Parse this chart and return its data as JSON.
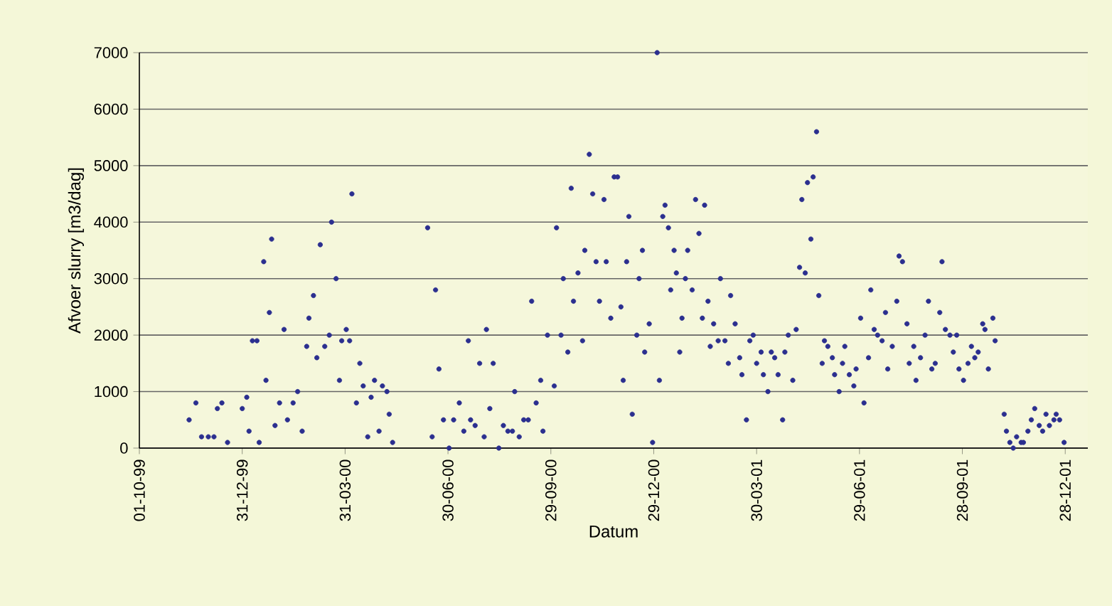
{
  "chart_data": {
    "type": "scatter",
    "xlabel": "Datum",
    "ylabel": "Afvoer slurry [m3/dag]",
    "xlim": [
      "1999-10-01",
      "2002-01-17"
    ],
    "xticks": [
      {
        "value": "1999-10-01",
        "label": "01-10-99"
      },
      {
        "value": "1999-12-31",
        "label": "31-12-99"
      },
      {
        "value": "2000-03-31",
        "label": "31-03-00"
      },
      {
        "value": "2000-06-30",
        "label": "30-06-00"
      },
      {
        "value": "2000-09-29",
        "label": "29-09-00"
      },
      {
        "value": "2000-12-29",
        "label": "29-12-00"
      },
      {
        "value": "2001-03-30",
        "label": "30-03-01"
      },
      {
        "value": "2001-06-29",
        "label": "29-06-01"
      },
      {
        "value": "2001-09-28",
        "label": "28-09-01"
      },
      {
        "value": "2001-12-28",
        "label": "28-12-01"
      }
    ],
    "ylim": [
      0,
      7000
    ],
    "yticks": [
      0,
      1000,
      2000,
      3000,
      4000,
      5000,
      6000,
      7000
    ],
    "grid": "y",
    "series": [
      {
        "color": "#2b2f8f",
        "x": [
          "1999-11-14",
          "1999-11-20",
          "1999-11-25",
          "1999-12-01",
          "1999-12-06",
          "1999-12-09",
          "1999-12-13",
          "1999-12-18",
          "1999-12-31",
          "2000-01-04",
          "2000-01-06",
          "2000-01-09",
          "2000-01-13",
          "2000-01-15",
          "2000-01-19",
          "2000-01-21",
          "2000-01-24",
          "2000-01-26",
          "2000-01-29",
          "2000-02-02",
          "2000-02-06",
          "2000-02-09",
          "2000-02-14",
          "2000-02-18",
          "2000-02-22",
          "2000-02-26",
          "2000-02-28",
          "2000-03-03",
          "2000-03-06",
          "2000-03-09",
          "2000-03-13",
          "2000-03-17",
          "2000-03-19",
          "2000-03-23",
          "2000-03-26",
          "2000-03-28",
          "2000-04-01",
          "2000-04-04",
          "2000-04-06",
          "2000-04-10",
          "2000-04-13",
          "2000-04-16",
          "2000-04-20",
          "2000-04-23",
          "2000-04-26",
          "2000-04-30",
          "2000-05-03",
          "2000-05-07",
          "2000-05-09",
          "2000-05-12",
          "2000-06-12",
          "2000-06-16",
          "2000-06-19",
          "2000-06-22",
          "2000-06-26",
          "2000-07-01",
          "2000-07-05",
          "2000-07-10",
          "2000-07-14",
          "2000-07-18",
          "2000-07-20",
          "2000-07-24",
          "2000-07-28",
          "2000-08-01",
          "2000-08-03",
          "2000-08-06",
          "2000-08-09",
          "2000-08-14",
          "2000-08-18",
          "2000-08-22",
          "2000-08-26",
          "2000-08-28",
          "2000-09-01",
          "2000-09-05",
          "2000-09-09",
          "2000-09-12",
          "2000-09-16",
          "2000-09-20",
          "2000-09-22",
          "2000-09-26",
          "2000-10-02",
          "2000-10-04",
          "2000-10-08",
          "2000-10-10",
          "2000-10-14",
          "2000-10-17",
          "2000-10-19",
          "2000-10-23",
          "2000-10-27",
          "2000-10-29",
          "2000-11-02",
          "2000-11-05",
          "2000-11-08",
          "2000-11-11",
          "2000-11-15",
          "2000-11-17",
          "2000-11-21",
          "2000-11-24",
          "2000-11-27",
          "2000-11-30",
          "2000-12-02",
          "2000-12-05",
          "2000-12-07",
          "2000-12-10",
          "2000-12-14",
          "2000-12-16",
          "2000-12-19",
          "2000-12-21",
          "2000-12-25",
          "2000-12-28",
          "2001-01-01",
          "2001-01-03",
          "2001-01-06",
          "2001-01-08",
          "2001-01-11",
          "2001-01-13",
          "2001-01-16",
          "2001-01-18",
          "2001-01-21",
          "2001-01-23",
          "2001-01-26",
          "2001-01-28",
          "2001-02-01",
          "2001-02-04",
          "2001-02-07",
          "2001-02-10",
          "2001-02-12",
          "2001-02-15",
          "2001-02-17",
          "2001-02-20",
          "2001-02-24",
          "2001-02-26",
          "2001-03-02",
          "2001-03-05",
          "2001-03-07",
          "2001-03-11",
          "2001-03-15",
          "2001-03-17",
          "2001-03-21",
          "2001-03-24",
          "2001-03-27",
          "2001-03-30",
          "2001-04-03",
          "2001-04-05",
          "2001-04-09",
          "2001-04-12",
          "2001-04-15",
          "2001-04-18",
          "2001-04-22",
          "2001-04-24",
          "2001-04-27",
          "2001-05-01",
          "2001-05-04",
          "2001-05-07",
          "2001-05-09",
          "2001-05-12",
          "2001-05-14",
          "2001-05-17",
          "2001-05-19",
          "2001-05-22",
          "2001-05-24",
          "2001-05-27",
          "2001-05-29",
          "2001-06-01",
          "2001-06-05",
          "2001-06-07",
          "2001-06-11",
          "2001-06-14",
          "2001-06-16",
          "2001-06-20",
          "2001-06-24",
          "2001-06-26",
          "2001-06-30",
          "2001-07-03",
          "2001-07-07",
          "2001-07-09",
          "2001-07-12",
          "2001-07-15",
          "2001-07-19",
          "2001-07-22",
          "2001-07-24",
          "2001-07-28",
          "2001-08-01",
          "2001-08-03",
          "2001-08-06",
          "2001-08-10",
          "2001-08-12",
          "2001-08-16",
          "2001-08-18",
          "2001-08-22",
          "2001-08-26",
          "2001-08-29",
          "2001-09-01",
          "2001-09-04",
          "2001-09-08",
          "2001-09-10",
          "2001-09-13",
          "2001-09-17",
          "2001-09-20",
          "2001-09-23",
          "2001-09-25",
          "2001-09-29",
          "2001-10-03",
          "2001-10-06",
          "2001-10-09",
          "2001-10-12",
          "2001-10-16",
          "2001-10-18",
          "2001-10-21",
          "2001-10-25",
          "2001-10-27",
          "2001-11-04",
          "2001-11-06",
          "2001-11-09",
          "2001-11-12",
          "2001-11-15",
          "2001-11-19",
          "2001-11-21",
          "2001-11-25",
          "2001-11-28",
          "2001-12-01",
          "2001-12-05",
          "2001-12-08",
          "2001-12-11",
          "2001-12-14",
          "2001-12-18",
          "2001-12-20",
          "2001-12-23",
          "2001-12-27"
        ],
        "values": [
          500,
          800,
          200,
          200,
          200,
          700,
          800,
          100,
          700,
          900,
          300,
          1900,
          1900,
          100,
          3300,
          1200,
          2400,
          3700,
          400,
          800,
          2100,
          500,
          800,
          1000,
          300,
          1800,
          2300,
          2700,
          1600,
          3600,
          1800,
          2000,
          4000,
          3000,
          1200,
          1900,
          2100,
          1900,
          4500,
          800,
          1500,
          1100,
          200,
          900,
          1200,
          300,
          1100,
          1000,
          600,
          100,
          3900,
          200,
          2800,
          1400,
          500,
          0,
          500,
          800,
          300,
          1900,
          500,
          400,
          1500,
          200,
          2100,
          700,
          1500,
          0,
          400,
          300,
          300,
          1000,
          200,
          500,
          500,
          2600,
          800,
          1200,
          300,
          2000,
          1100,
          3900,
          2000,
          3000,
          1700,
          4600,
          2600,
          3100,
          1900,
          3500,
          5200,
          4500,
          3300,
          2600,
          4400,
          3300,
          2300,
          4800,
          4800,
          2500,
          1200,
          3300,
          4100,
          600,
          2000,
          3000,
          3500,
          1700,
          2200,
          100,
          7000,
          1200,
          4100,
          4300,
          3900,
          2800,
          3500,
          3100,
          1700,
          2300,
          3000,
          3500,
          2800,
          4400,
          3800,
          2300,
          4300,
          2600,
          1800,
          2200,
          1900,
          3000,
          1900,
          1500,
          2700,
          2200,
          1600,
          1300,
          500,
          1900,
          2000,
          1500,
          1700,
          1300,
          1000,
          1700,
          1600,
          1300,
          500,
          1700,
          2000,
          1200,
          2100,
          3200,
          4400,
          3100,
          4700,
          3700,
          4800,
          5600,
          2700,
          1500,
          1900,
          1800,
          1600,
          1300,
          1000,
          1500,
          1800,
          1300,
          1100,
          1400,
          2300,
          800,
          1600,
          2800,
          2100,
          2000,
          1900,
          2400,
          1400,
          1800,
          2600,
          3400,
          3300,
          2200,
          1500,
          1800,
          1200,
          1600,
          2000,
          2600,
          1400,
          1500,
          2400,
          3300,
          2100,
          2000,
          1700,
          2000,
          1400,
          1200,
          1500,
          1800,
          1600,
          1700,
          2200,
          2100,
          1400,
          2300,
          1900,
          600,
          300,
          100,
          0,
          200,
          100,
          100,
          300,
          500,
          700,
          400,
          300,
          600,
          400,
          500,
          600,
          500,
          100
        ]
      }
    ]
  }
}
